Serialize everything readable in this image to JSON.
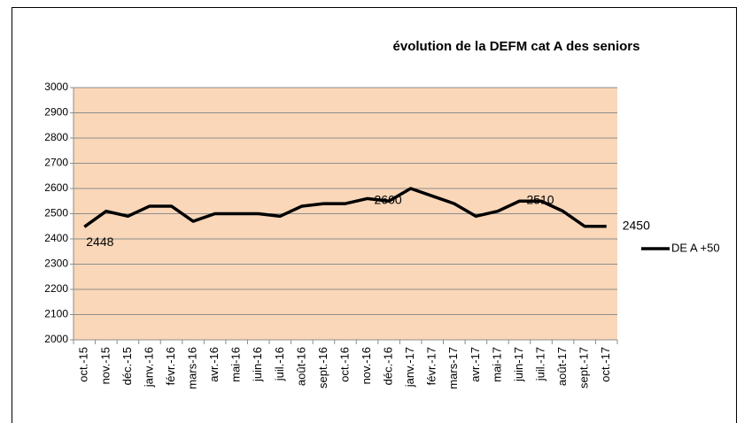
{
  "chart_data": {
    "type": "line",
    "title": "évolution de la DEFM cat A des seniors",
    "categories": [
      "oct.-15",
      "nov.-15",
      "déc.-15",
      "janv.-16",
      "févr.-16",
      "mars-16",
      "avr.-16",
      "mai-16",
      "juin-16",
      "juil.-16",
      "août-16",
      "sept.-16",
      "oct.-16",
      "nov.-16",
      "déc.-16",
      "janv.-17",
      "févr.-17",
      "mars-17",
      "avr.-17",
      "mai-17",
      "juin-17",
      "juil.-17",
      "août-17",
      "sept.-17",
      "oct.-17"
    ],
    "series": [
      {
        "name": "DE A +50",
        "color": "#000000",
        "values": [
          2448,
          2510,
          2490,
          2530,
          2530,
          2470,
          2500,
          2500,
          2500,
          2490,
          2530,
          2540,
          2540,
          2560,
          2550,
          2600,
          2570,
          2540,
          2490,
          2510,
          2550,
          2550,
          2510,
          2450,
          2450
        ]
      }
    ],
    "data_labels": [
      0,
      15,
      22,
      24
    ],
    "ylim": [
      2000,
      3000
    ],
    "yticks": [
      2000,
      2100,
      2200,
      2300,
      2400,
      2500,
      2600,
      2700,
      2800,
      2900,
      3000
    ],
    "grid": true,
    "legend": "right",
    "plot_background": "#fad7b9"
  }
}
